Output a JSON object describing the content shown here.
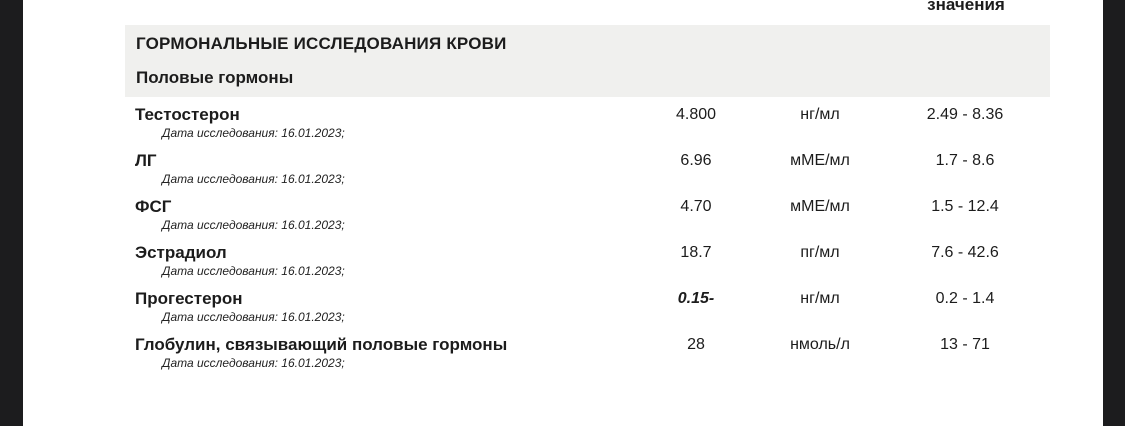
{
  "colors": {
    "letterbox_bg": "#1c1c1e",
    "page_bg": "#ffffff",
    "section_band_bg": "#f0f0ee",
    "text": "#1c1c1c"
  },
  "header": {
    "values_column_label": "значения"
  },
  "section": {
    "title": "ГОРМОНАЛЬНЫЕ ИССЛЕДОВАНИЯ КРОВИ",
    "subtitle": "Половые гормоны"
  },
  "rows": [
    {
      "name": "Тестостерон",
      "date": "Дата исследования: 16.01.2023;",
      "value": "4.800",
      "unit": "нг/мл",
      "range": "2.49 - 8.36",
      "flagged": false
    },
    {
      "name": "ЛГ",
      "date": "Дата исследования: 16.01.2023;",
      "value": "6.96",
      "unit": "мМЕ/мл",
      "range": "1.7 - 8.6",
      "flagged": false
    },
    {
      "name": "ФСГ",
      "date": "Дата исследования: 16.01.2023;",
      "value": "4.70",
      "unit": "мМЕ/мл",
      "range": "1.5 - 12.4",
      "flagged": false
    },
    {
      "name": "Эстрадиол",
      "date": "Дата исследования: 16.01.2023;",
      "value": "18.7",
      "unit": "пг/мл",
      "range": "7.6 - 42.6",
      "flagged": false
    },
    {
      "name": "Прогестерон",
      "date": "Дата исследования: 16.01.2023;",
      "value": "0.15-",
      "unit": "нг/мл",
      "range": "0.2 - 1.4",
      "flagged": true
    },
    {
      "name": "Глобулин, связывающий половые гормоны",
      "date": "Дата исследования: 16.01.2023;",
      "value": "28",
      "unit": "нмоль/л",
      "range": "13 - 71",
      "flagged": false
    }
  ]
}
